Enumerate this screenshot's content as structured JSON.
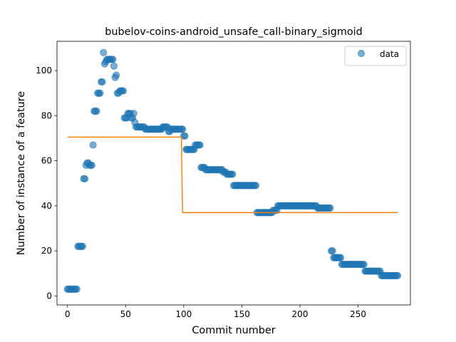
{
  "chart_data": {
    "type": "scatter",
    "title": "bubelov-coins-android_unsafe_call-binary_sigmoid",
    "xlabel": "Commit number",
    "ylabel": "Number of instance of a feature",
    "xlim": [
      -9,
      295
    ],
    "ylim": [
      -4,
      113
    ],
    "xticks": [
      0,
      50,
      100,
      150,
      200,
      250
    ],
    "yticks": [
      0,
      20,
      40,
      60,
      80,
      100
    ],
    "grid": false,
    "legend_position": "top-right",
    "colors": {
      "data": "#1f77b4",
      "fit": "#ff7f0e"
    },
    "series": [
      {
        "name": "data",
        "kind": "scatter",
        "points": [
          [
            0,
            3
          ],
          [
            1,
            3
          ],
          [
            2,
            3
          ],
          [
            3,
            3
          ],
          [
            4,
            3
          ],
          [
            5,
            3
          ],
          [
            6,
            3
          ],
          [
            7,
            3
          ],
          [
            8,
            3
          ],
          [
            9,
            22
          ],
          [
            10,
            22
          ],
          [
            11,
            22
          ],
          [
            12,
            22
          ],
          [
            13,
            22
          ],
          [
            14,
            52
          ],
          [
            15,
            52
          ],
          [
            16,
            58
          ],
          [
            17,
            59
          ],
          [
            18,
            59
          ],
          [
            19,
            58
          ],
          [
            20,
            58
          ],
          [
            21,
            58
          ],
          [
            22,
            67
          ],
          [
            23,
            82
          ],
          [
            24,
            82
          ],
          [
            25,
            82
          ],
          [
            26,
            90
          ],
          [
            27,
            90
          ],
          [
            28,
            90
          ],
          [
            29,
            95
          ],
          [
            30,
            95
          ],
          [
            31,
            108
          ],
          [
            32,
            103
          ],
          [
            33,
            104
          ],
          [
            34,
            105
          ],
          [
            35,
            105
          ],
          [
            36,
            105
          ],
          [
            37,
            105
          ],
          [
            38,
            105
          ],
          [
            39,
            105
          ],
          [
            40,
            102
          ],
          [
            41,
            97
          ],
          [
            42,
            98
          ],
          [
            43,
            90
          ],
          [
            44,
            90
          ],
          [
            45,
            91
          ],
          [
            46,
            91
          ],
          [
            47,
            91
          ],
          [
            48,
            91
          ],
          [
            49,
            79
          ],
          [
            50,
            79
          ],
          [
            51,
            79
          ],
          [
            52,
            81
          ],
          [
            53,
            81
          ],
          [
            54,
            81
          ],
          [
            55,
            79
          ],
          [
            56,
            79
          ],
          [
            57,
            81
          ],
          [
            58,
            77
          ],
          [
            59,
            75
          ],
          [
            60,
            75
          ]
        ],
        "runs": [
          [
            61,
            66,
            75
          ],
          [
            67,
            81,
            74
          ],
          [
            82,
            86,
            75
          ],
          [
            87,
            88,
            73
          ],
          [
            89,
            99,
            74
          ],
          [
            100,
            101,
            71
          ],
          [
            102,
            109,
            65
          ],
          [
            110,
            114,
            67
          ],
          [
            115,
            118,
            57
          ],
          [
            119,
            123,
            56
          ],
          [
            124,
            130,
            56
          ],
          [
            131,
            133,
            56
          ],
          [
            134,
            136,
            55
          ],
          [
            137,
            142,
            54
          ],
          [
            143,
            162,
            49
          ],
          [
            163,
            176,
            37
          ],
          [
            177,
            180,
            38
          ],
          [
            181,
            214,
            40
          ],
          [
            215,
            226,
            39
          ],
          [
            227,
            228,
            20
          ],
          [
            229,
            235,
            17
          ],
          [
            236,
            255,
            14
          ],
          [
            256,
            269,
            11
          ],
          [
            270,
            284,
            9
          ]
        ]
      },
      {
        "kind": "line",
        "steps": [
          [
            0,
            70.5
          ],
          [
            98,
            70.5
          ],
          [
            99,
            37
          ],
          [
            284,
            37
          ]
        ]
      }
    ]
  }
}
